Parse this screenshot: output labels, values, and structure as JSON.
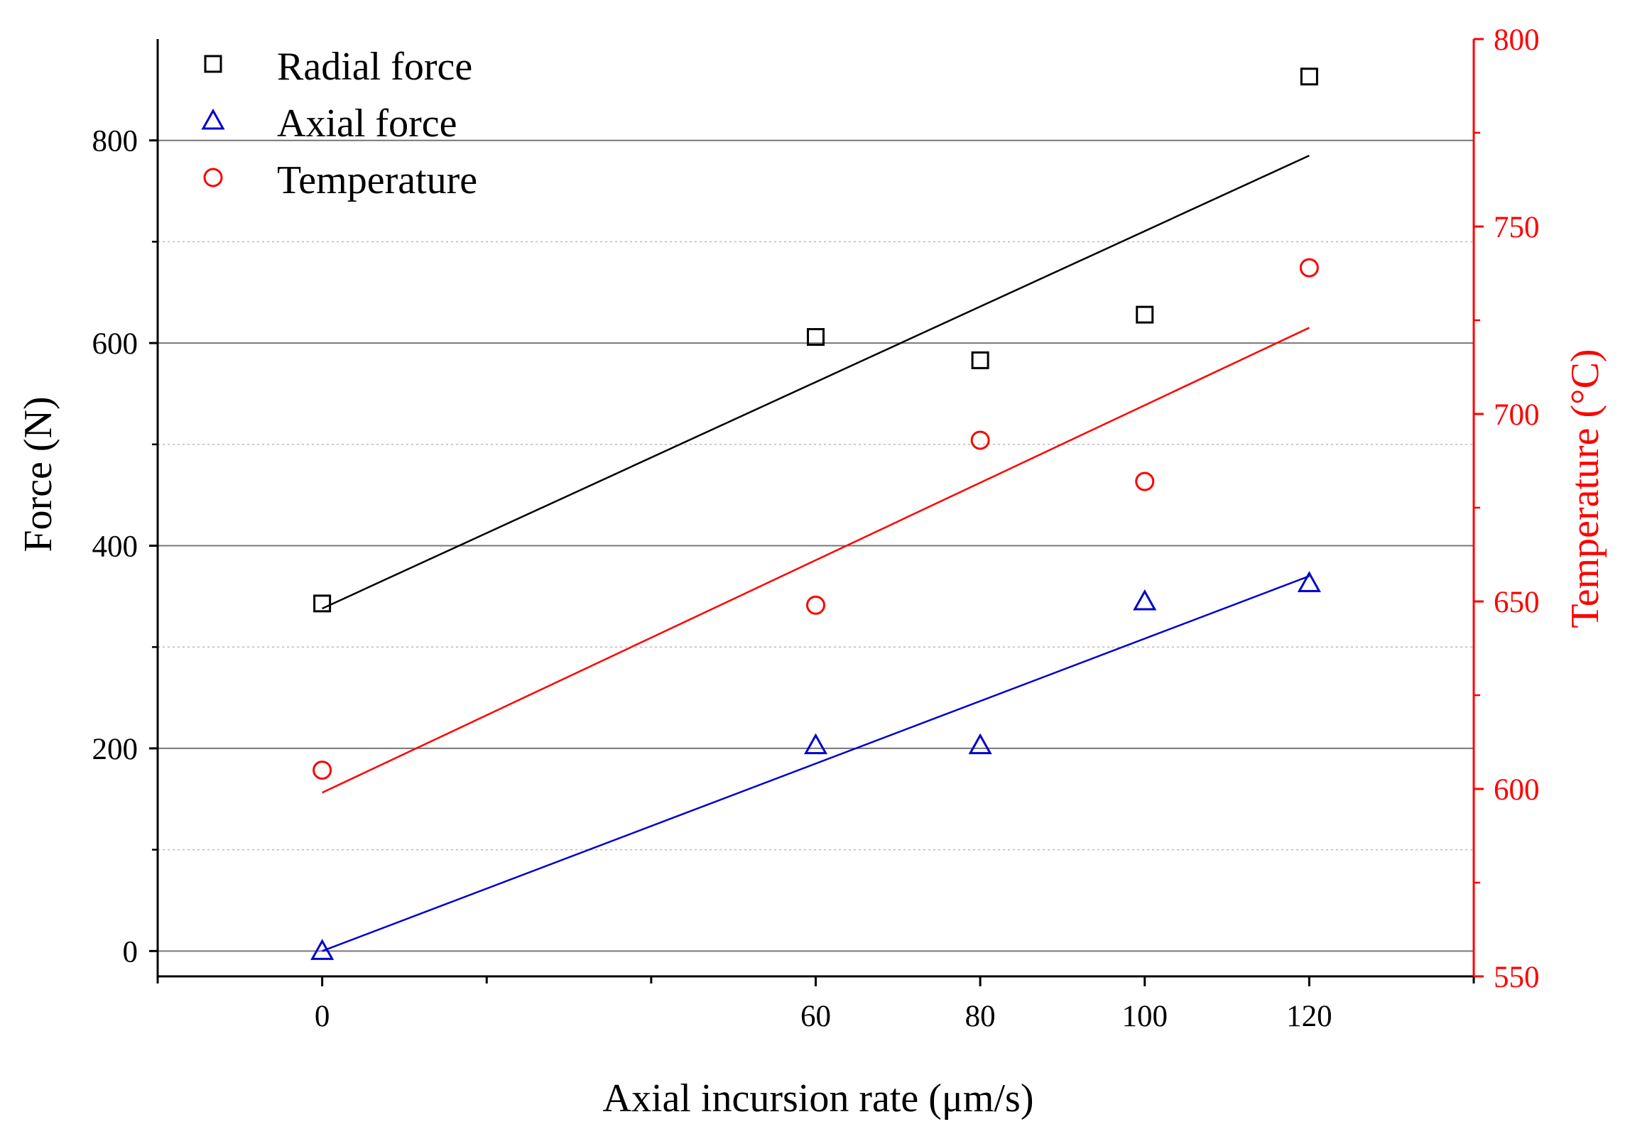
{
  "chart_data": {
    "type": "scatter",
    "xlabel": "Axial incursion rate (μm/s)",
    "ylabel": "Force (N)",
    "y2label": "Temperature (°C)",
    "xlim": [
      -20,
      140
    ],
    "ylim": [
      -25,
      900
    ],
    "y2lim": [
      550,
      800
    ],
    "x_ticks": [
      0,
      60,
      80,
      100,
      120
    ],
    "x_minor_ticks": [
      -20,
      20,
      40,
      140
    ],
    "y_ticks": [
      0,
      200,
      400,
      600,
      800
    ],
    "y2_ticks": [
      550,
      600,
      650,
      700,
      750,
      800
    ],
    "grid": {
      "major_y": [
        0,
        200,
        400,
        600,
        800
      ],
      "minor_y": [
        100,
        300,
        500,
        700
      ]
    },
    "legend_position": "top-left",
    "series": [
      {
        "name": "Radial force",
        "axis": "left",
        "marker": "square",
        "color": "#000000",
        "x": [
          0,
          60,
          80,
          100,
          120
        ],
        "y": [
          343,
          606,
          583,
          628,
          863
        ],
        "fit": {
          "x": [
            0,
            120
          ],
          "y": [
            338,
            785
          ]
        }
      },
      {
        "name": "Axial force",
        "axis": "left",
        "marker": "triangle",
        "color": "#0000cc",
        "x": [
          0,
          60,
          80,
          100,
          120
        ],
        "y": [
          0,
          203,
          203,
          345,
          363
        ],
        "fit": {
          "x": [
            0,
            120
          ],
          "y": [
            0,
            370
          ]
        }
      },
      {
        "name": "Temperature",
        "axis": "right",
        "marker": "circle",
        "color": "#ff0000",
        "x": [
          0,
          60,
          80,
          100,
          120
        ],
        "y": [
          605,
          649,
          693,
          682,
          739
        ],
        "fit": {
          "x": [
            0,
            120
          ],
          "y": [
            599,
            723
          ]
        }
      }
    ]
  }
}
